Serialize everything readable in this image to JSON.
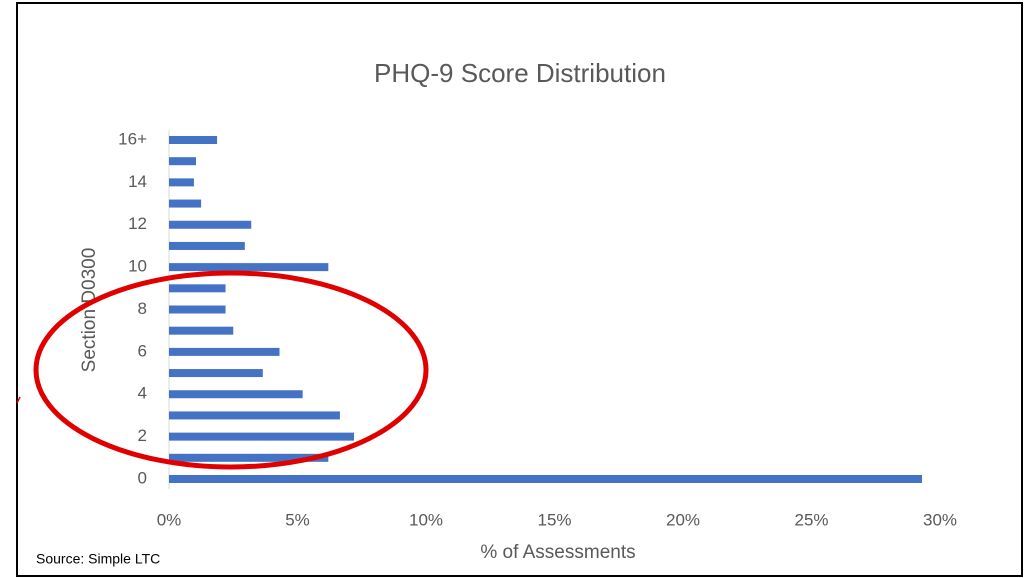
{
  "chart_data": {
    "type": "bar",
    "orientation": "horizontal",
    "title": "PHQ-9 Score Distribution",
    "x_label": "% of Assessments",
    "y_label": "Section D0300",
    "source": "Source:  Simple LTC",
    "categories": [
      "0",
      null,
      "2",
      null,
      "4",
      null,
      "6",
      null,
      "8",
      null,
      "10",
      null,
      "12",
      null,
      "14",
      null,
      "16+"
    ],
    "values": [
      29.3,
      6.2,
      7.2,
      6.65,
      5.2,
      3.65,
      4.3,
      2.5,
      2.2,
      2.2,
      6.2,
      2.95,
      3.2,
      1.25,
      0.97,
      1.05,
      1.87
    ],
    "color": "#4472c4",
    "xlim": [
      0,
      30
    ],
    "xticks": [
      {
        "value": 0,
        "label": "0%"
      },
      {
        "value": 5,
        "label": "5%"
      },
      {
        "value": 10,
        "label": "10%"
      },
      {
        "value": 15,
        "label": "15%"
      },
      {
        "value": 20,
        "label": "20%"
      },
      {
        "value": 25,
        "label": "25%"
      },
      {
        "value": 30,
        "label": "30%"
      }
    ],
    "grid": false
  }
}
